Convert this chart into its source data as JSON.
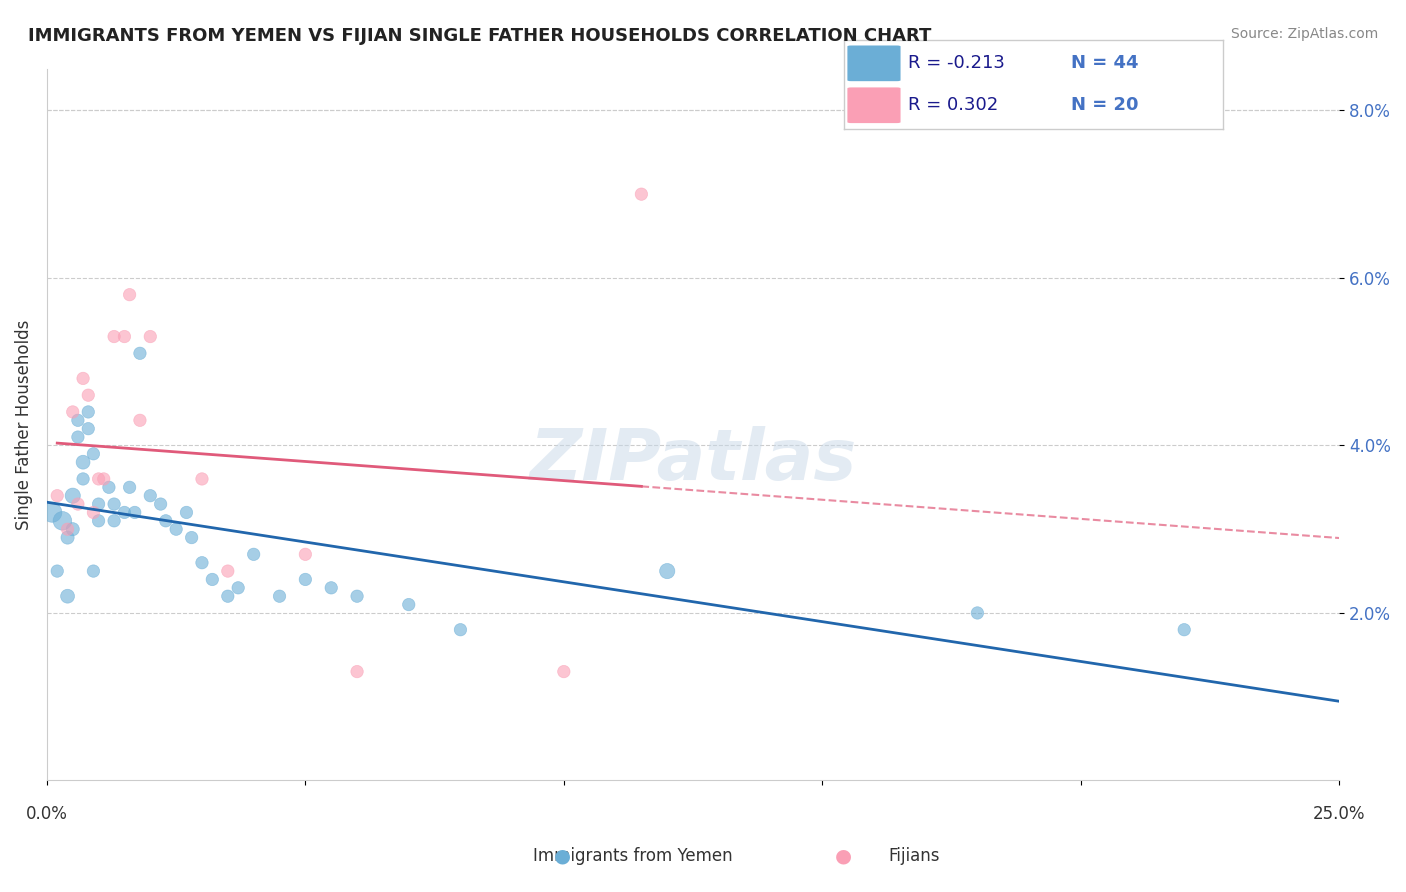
{
  "title": "IMMIGRANTS FROM YEMEN VS FIJIAN SINGLE FATHER HOUSEHOLDS CORRELATION CHART",
  "source": "Source: ZipAtlas.com",
  "ylabel": "Single Father Households",
  "legend_label1": "Immigrants from Yemen",
  "legend_label2": "Fijians",
  "r1": -0.213,
  "n1": 44,
  "r2": 0.302,
  "n2": 20,
  "color_blue": "#6baed6",
  "color_pink": "#fa9fb5",
  "line_blue": "#2166ac",
  "line_pink": "#e05a7a",
  "watermark": "ZIPatlas",
  "xmin": 0.0,
  "xmax": 0.25,
  "ymin": 0.0,
  "ymax": 0.085,
  "yticks": [
    0.02,
    0.04,
    0.06,
    0.08
  ],
  "ytick_labels": [
    "2.0%",
    "4.0%",
    "6.0%",
    "8.0%"
  ],
  "blue_points": [
    [
      0.001,
      0.032
    ],
    [
      0.002,
      0.025
    ],
    [
      0.003,
      0.031
    ],
    [
      0.004,
      0.022
    ],
    [
      0.004,
      0.029
    ],
    [
      0.005,
      0.034
    ],
    [
      0.005,
      0.03
    ],
    [
      0.006,
      0.043
    ],
    [
      0.006,
      0.041
    ],
    [
      0.007,
      0.038
    ],
    [
      0.007,
      0.036
    ],
    [
      0.008,
      0.044
    ],
    [
      0.008,
      0.042
    ],
    [
      0.009,
      0.039
    ],
    [
      0.009,
      0.025
    ],
    [
      0.01,
      0.033
    ],
    [
      0.01,
      0.031
    ],
    [
      0.012,
      0.035
    ],
    [
      0.013,
      0.033
    ],
    [
      0.013,
      0.031
    ],
    [
      0.015,
      0.032
    ],
    [
      0.016,
      0.035
    ],
    [
      0.017,
      0.032
    ],
    [
      0.018,
      0.051
    ],
    [
      0.02,
      0.034
    ],
    [
      0.022,
      0.033
    ],
    [
      0.023,
      0.031
    ],
    [
      0.025,
      0.03
    ],
    [
      0.027,
      0.032
    ],
    [
      0.028,
      0.029
    ],
    [
      0.03,
      0.026
    ],
    [
      0.032,
      0.024
    ],
    [
      0.035,
      0.022
    ],
    [
      0.037,
      0.023
    ],
    [
      0.04,
      0.027
    ],
    [
      0.045,
      0.022
    ],
    [
      0.05,
      0.024
    ],
    [
      0.055,
      0.023
    ],
    [
      0.06,
      0.022
    ],
    [
      0.07,
      0.021
    ],
    [
      0.08,
      0.018
    ],
    [
      0.12,
      0.025
    ],
    [
      0.18,
      0.02
    ],
    [
      0.22,
      0.018
    ]
  ],
  "pink_points": [
    [
      0.002,
      0.034
    ],
    [
      0.004,
      0.03
    ],
    [
      0.005,
      0.044
    ],
    [
      0.006,
      0.033
    ],
    [
      0.007,
      0.048
    ],
    [
      0.008,
      0.046
    ],
    [
      0.009,
      0.032
    ],
    [
      0.01,
      0.036
    ],
    [
      0.011,
      0.036
    ],
    [
      0.013,
      0.053
    ],
    [
      0.015,
      0.053
    ],
    [
      0.016,
      0.058
    ],
    [
      0.018,
      0.043
    ],
    [
      0.02,
      0.053
    ],
    [
      0.03,
      0.036
    ],
    [
      0.035,
      0.025
    ],
    [
      0.05,
      0.027
    ],
    [
      0.06,
      0.013
    ],
    [
      0.1,
      0.013
    ],
    [
      0.115,
      0.07
    ]
  ],
  "blue_sizes": [
    200,
    80,
    180,
    100,
    90,
    120,
    90,
    80,
    80,
    100,
    80,
    80,
    80,
    80,
    80,
    80,
    80,
    80,
    80,
    80,
    80,
    80,
    80,
    80,
    80,
    80,
    80,
    80,
    80,
    80,
    80,
    80,
    80,
    80,
    80,
    80,
    80,
    80,
    80,
    80,
    80,
    120,
    80,
    80
  ],
  "pink_sizes": [
    80,
    80,
    80,
    80,
    80,
    80,
    80,
    80,
    80,
    80,
    80,
    80,
    80,
    80,
    80,
    80,
    80,
    80,
    80,
    80
  ]
}
